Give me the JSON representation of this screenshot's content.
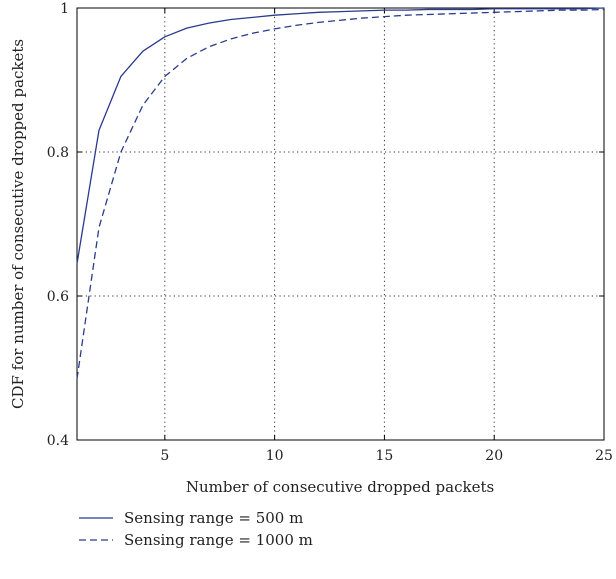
{
  "chart_data": {
    "type": "line",
    "title": "",
    "xlabel": "Number of consecutive dropped packets",
    "ylabel": "CDF for number of consecutive dropped packets",
    "xlim": [
      1,
      25
    ],
    "ylim": [
      0.4,
      1
    ],
    "xticks": [
      5,
      10,
      15,
      20,
      25
    ],
    "yticks": [
      0.4,
      0.6,
      0.8,
      1
    ],
    "xtick_labels": [
      "5",
      "10",
      "15",
      "20",
      "25"
    ],
    "ytick_labels": [
      "0.4",
      "0.6",
      "0.8",
      "1"
    ],
    "grid": true,
    "legend_position": "bottom-left",
    "series": [
      {
        "name": "Sensing range = 500 m",
        "style": "solid",
        "color": "#2b3a8c",
        "x": [
          1,
          2,
          3,
          4,
          5,
          6,
          7,
          8,
          9,
          10,
          11,
          12,
          13,
          14,
          15,
          16,
          17,
          18,
          19,
          20,
          21,
          22,
          23,
          24,
          25
        ],
        "y": [
          0.645,
          0.83,
          0.905,
          0.94,
          0.96,
          0.972,
          0.979,
          0.984,
          0.987,
          0.99,
          0.992,
          0.994,
          0.995,
          0.996,
          0.997,
          0.997,
          0.998,
          0.998,
          0.998,
          0.999,
          0.999,
          0.999,
          0.999,
          0.999,
          1.0
        ]
      },
      {
        "name": "Sensing range = 1000 m",
        "style": "dashed",
        "color": "#2b3a8c",
        "x": [
          1,
          2,
          3,
          4,
          5,
          6,
          7,
          8,
          9,
          10,
          11,
          12,
          13,
          14,
          15,
          16,
          17,
          18,
          19,
          20,
          21,
          22,
          23,
          24,
          25
        ],
        "y": [
          0.485,
          0.695,
          0.8,
          0.865,
          0.905,
          0.93,
          0.946,
          0.957,
          0.965,
          0.971,
          0.976,
          0.98,
          0.983,
          0.986,
          0.988,
          0.99,
          0.991,
          0.992,
          0.993,
          0.994,
          0.995,
          0.996,
          0.997,
          0.997,
          0.998
        ]
      }
    ]
  }
}
